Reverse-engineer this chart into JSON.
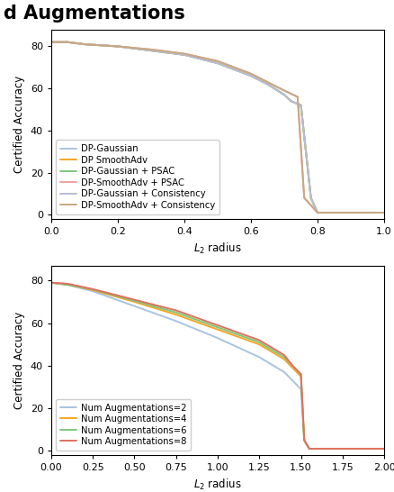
{
  "top_plot": {
    "xlabel": "$L_2$ radius",
    "ylabel": "Certified Accuracy",
    "xlim": [
      0.0,
      1.0
    ],
    "ylim": [
      -2,
      88
    ],
    "yticks": [
      0,
      20,
      40,
      60,
      80
    ],
    "xticks": [
      0.0,
      0.2,
      0.4,
      0.6,
      0.8,
      1.0
    ],
    "xtick_labels": [
      "0.0",
      "0.2",
      "0.4",
      "0.6",
      "0.8",
      "1.0"
    ],
    "series": [
      {
        "label": "DP-Gaussian",
        "color": "#a8c4e0",
        "x": [
          0.0,
          0.05,
          0.1,
          0.2,
          0.3,
          0.4,
          0.5,
          0.6,
          0.65,
          0.7,
          0.72,
          0.75,
          0.78,
          0.8,
          0.82,
          1.0
        ],
        "y": [
          82,
          82,
          81,
          80,
          78,
          76,
          72,
          66,
          62,
          57,
          54,
          52,
          8,
          1,
          1,
          1
        ]
      },
      {
        "label": "DP SmoothAdv",
        "color": "#f5a623",
        "x": [
          0.0,
          0.05,
          0.1,
          0.2,
          0.3,
          0.4,
          0.5,
          0.6,
          0.65,
          0.7,
          0.72,
          0.75,
          0.78,
          0.8,
          0.82,
          1.0
        ],
        "y": [
          82,
          82,
          81,
          80,
          78,
          76,
          72,
          66,
          62,
          57,
          54,
          52,
          8,
          1,
          1,
          1
        ]
      },
      {
        "label": "DP-Gaussian + PSAC",
        "color": "#7ec87e",
        "x": [
          0.0,
          0.05,
          0.1,
          0.2,
          0.3,
          0.4,
          0.5,
          0.6,
          0.65,
          0.7,
          0.72,
          0.75,
          0.78,
          0.8,
          0.82,
          1.0
        ],
        "y": [
          82,
          82,
          81,
          80,
          78,
          76,
          72,
          66,
          62,
          57,
          54,
          52,
          8,
          1,
          1,
          1
        ]
      },
      {
        "label": "DP-SmoothAdv + PSAC",
        "color": "#f0a0a0",
        "x": [
          0.0,
          0.05,
          0.1,
          0.2,
          0.3,
          0.4,
          0.5,
          0.6,
          0.65,
          0.7,
          0.72,
          0.74,
          0.76,
          0.8,
          0.82,
          1.0
        ],
        "y": [
          82,
          82,
          81,
          80,
          78.5,
          76.5,
          73,
          67,
          63,
          59,
          57.5,
          56,
          8,
          1,
          1,
          1
        ]
      },
      {
        "label": "DP-Gaussian + Consistency",
        "color": "#b8bcd8",
        "x": [
          0.0,
          0.05,
          0.1,
          0.2,
          0.3,
          0.4,
          0.5,
          0.6,
          0.65,
          0.7,
          0.72,
          0.75,
          0.78,
          0.8,
          0.82,
          1.0
        ],
        "y": [
          82,
          82,
          81,
          80,
          78,
          76,
          72,
          66,
          62,
          57,
          54,
          52,
          8,
          1,
          1,
          1
        ]
      },
      {
        "label": "DP-SmoothAdv + Consistency",
        "color": "#c8a882",
        "x": [
          0.0,
          0.05,
          0.1,
          0.2,
          0.3,
          0.4,
          0.5,
          0.6,
          0.65,
          0.7,
          0.72,
          0.74,
          0.76,
          0.8,
          0.82,
          1.0
        ],
        "y": [
          82,
          82,
          81,
          80,
          78.5,
          76.5,
          73,
          67,
          63,
          59,
          57.5,
          56,
          8,
          1,
          1,
          1
        ]
      }
    ]
  },
  "bottom_plot": {
    "xlabel": "$L_2$ radius",
    "ylabel": "Certified Accuracy",
    "xlim": [
      0.0,
      2.0
    ],
    "ylim": [
      -2,
      87
    ],
    "yticks": [
      0,
      20,
      40,
      60,
      80
    ],
    "xticks": [
      0.0,
      0.25,
      0.5,
      0.75,
      1.0,
      1.25,
      1.5,
      1.75,
      2.0
    ],
    "xtick_labels": [
      "0.00",
      "0.25",
      "0.50",
      "0.75",
      "1.00",
      "1.25",
      "1.50",
      "1.75",
      "2.00"
    ],
    "series": [
      {
        "label": "Num Augmentations=2",
        "color": "#a8c4e0",
        "x": [
          0.0,
          0.05,
          0.1,
          0.25,
          0.5,
          0.75,
          1.0,
          1.25,
          1.4,
          1.45,
          1.5,
          1.52,
          1.55,
          1.6,
          2.0
        ],
        "y": [
          79,
          78.5,
          78,
          75,
          68,
          61,
          53,
          44,
          37,
          33,
          29,
          5,
          1,
          1,
          1
        ]
      },
      {
        "label": "Num Augmentations=4",
        "color": "#f5a623",
        "x": [
          0.0,
          0.05,
          0.1,
          0.25,
          0.5,
          0.75,
          1.0,
          1.25,
          1.4,
          1.45,
          1.5,
          1.52,
          1.55,
          1.6,
          2.0
        ],
        "y": [
          79,
          78.5,
          78,
          75.5,
          70,
          64,
          57,
          50,
          43,
          39,
          35,
          5,
          1,
          1,
          1
        ]
      },
      {
        "label": "Num Augmentations=6",
        "color": "#7ec87e",
        "x": [
          0.0,
          0.05,
          0.1,
          0.25,
          0.5,
          0.75,
          1.0,
          1.25,
          1.4,
          1.45,
          1.5,
          1.52,
          1.55,
          1.6,
          2.0
        ],
        "y": [
          79,
          78.5,
          78,
          75.8,
          70.5,
          65,
          58,
          51,
          44,
          40,
          36,
          5,
          1,
          1,
          1
        ]
      },
      {
        "label": "Num Augmentations=8",
        "color": "#e07060",
        "x": [
          0.0,
          0.05,
          0.1,
          0.25,
          0.5,
          0.75,
          1.0,
          1.25,
          1.4,
          1.45,
          1.5,
          1.52,
          1.55,
          1.6,
          2.0
        ],
        "y": [
          79,
          78.8,
          78.5,
          76,
          71,
          66,
          59,
          52,
          45,
          40,
          36,
          5,
          1,
          1,
          1
        ]
      }
    ]
  },
  "suptitle": "d Augmentations",
  "suptitle_fontsize": 15,
  "suptitle_fontweight": "bold",
  "background_color": "#ffffff",
  "legend1_loc": "lower left",
  "legend2_loc": "lower left",
  "legend_fontsize": 7.2,
  "axis_fontsize": 8.5,
  "tick_fontsize": 8,
  "linewidth": 1.4
}
